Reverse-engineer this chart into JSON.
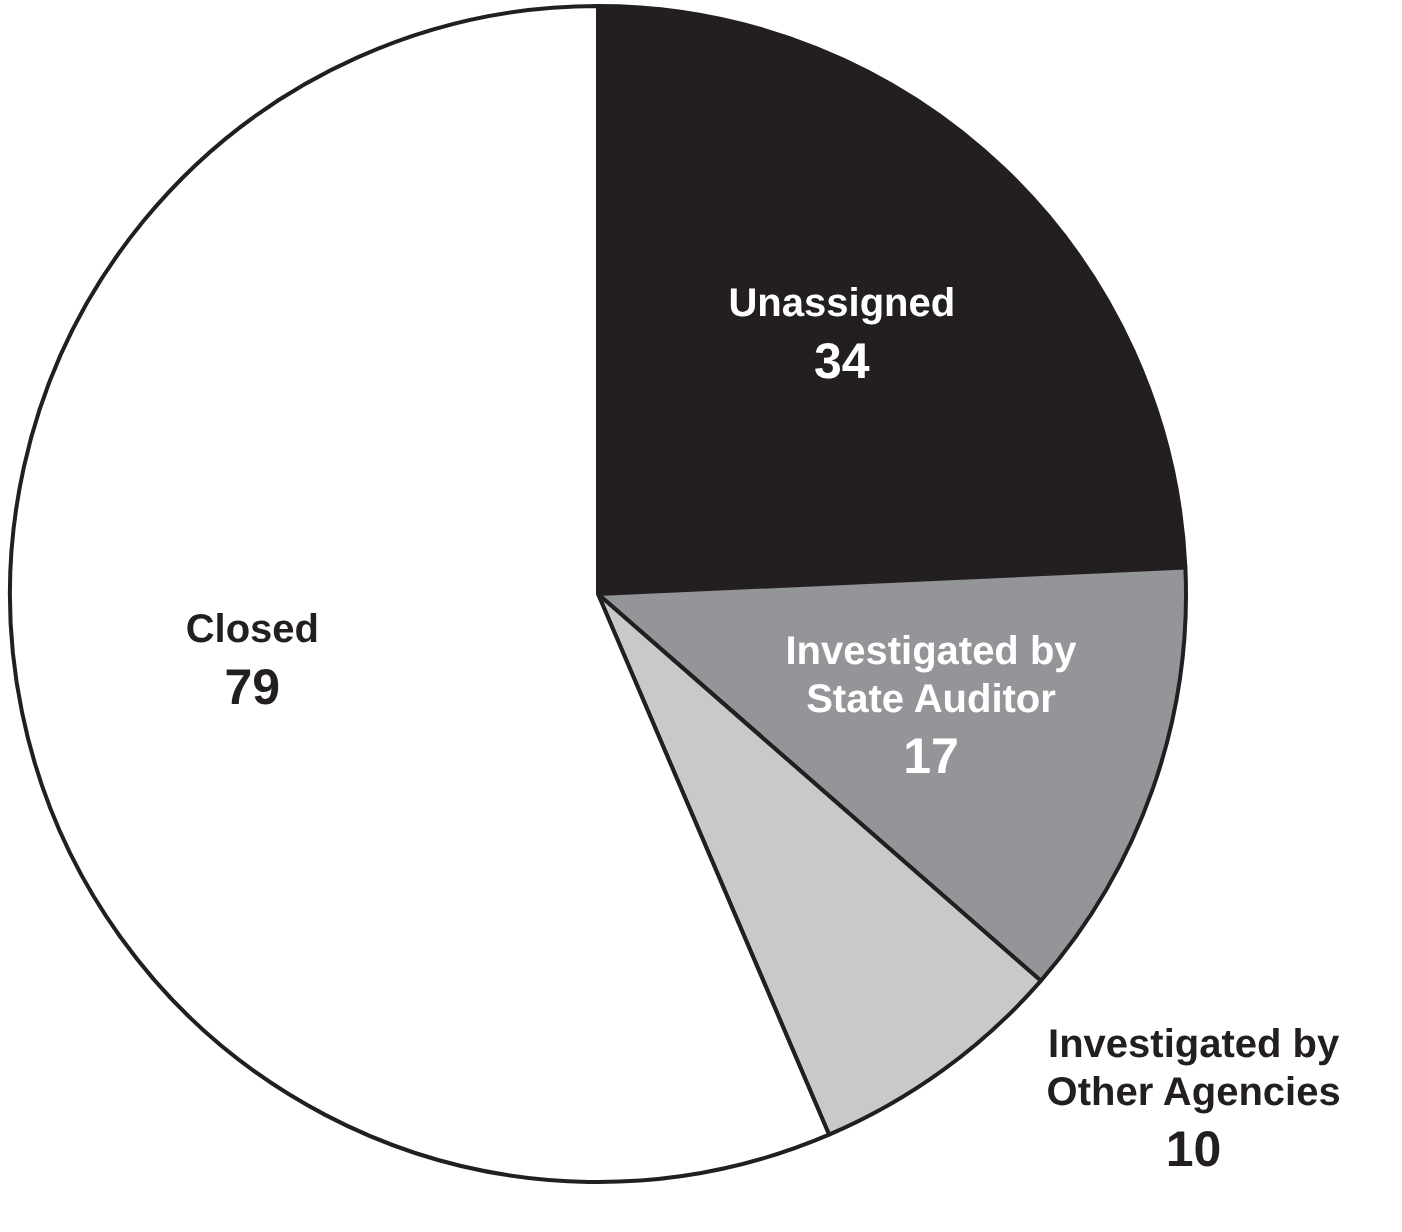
{
  "chart_data": {
    "type": "pie",
    "categories": [
      "Unassigned",
      "Investigated by State Auditor",
      "Investigated by Other Agencies",
      "Closed"
    ],
    "values": [
      34,
      17,
      10,
      79
    ],
    "colors": [
      "#231f20",
      "#939598",
      "#c8c9cb",
      "#ffffff"
    ],
    "data_labels": true,
    "legend": false
  }
}
